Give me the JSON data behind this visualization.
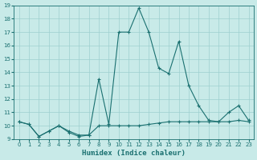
{
  "xlabel": "Humidex (Indice chaleur)",
  "xlim": [
    -0.5,
    23.5
  ],
  "ylim": [
    9,
    19
  ],
  "yticks": [
    9,
    10,
    11,
    12,
    13,
    14,
    15,
    16,
    17,
    18,
    19
  ],
  "xticks": [
    0,
    1,
    2,
    3,
    4,
    5,
    6,
    7,
    8,
    9,
    10,
    11,
    12,
    13,
    14,
    15,
    16,
    17,
    18,
    19,
    20,
    21,
    22,
    23
  ],
  "bg_color": "#c8eae8",
  "grid_color": "#9ecfcf",
  "line_color": "#1a7070",
  "line1_x": [
    0,
    1,
    2,
    3,
    4,
    5,
    6,
    7,
    8,
    9,
    10,
    11,
    12,
    13,
    14,
    15,
    16,
    17,
    18,
    19,
    20,
    21,
    22,
    23
  ],
  "line1_y": [
    10.3,
    10.1,
    9.2,
    9.6,
    10.0,
    9.5,
    9.2,
    9.3,
    10.0,
    10.0,
    10.0,
    10.0,
    10.0,
    10.1,
    10.2,
    10.3,
    10.3,
    10.3,
    10.3,
    10.3,
    10.3,
    10.3,
    10.4,
    10.3
  ],
  "line2_x": [
    0,
    1,
    2,
    3,
    4,
    5,
    6,
    7,
    8,
    9,
    10,
    11,
    12,
    13,
    14,
    15,
    16,
    17,
    18,
    19,
    20,
    21,
    22,
    23
  ],
  "line2_y": [
    10.3,
    10.1,
    9.2,
    9.6,
    10.0,
    9.6,
    9.3,
    9.3,
    13.5,
    10.1,
    17.0,
    17.0,
    18.8,
    17.0,
    14.3,
    13.9,
    16.3,
    13.0,
    11.5,
    10.4,
    10.3,
    11.0,
    11.5,
    10.4
  ],
  "xlabel_fontsize": 6.5,
  "tick_fontsize": 5
}
